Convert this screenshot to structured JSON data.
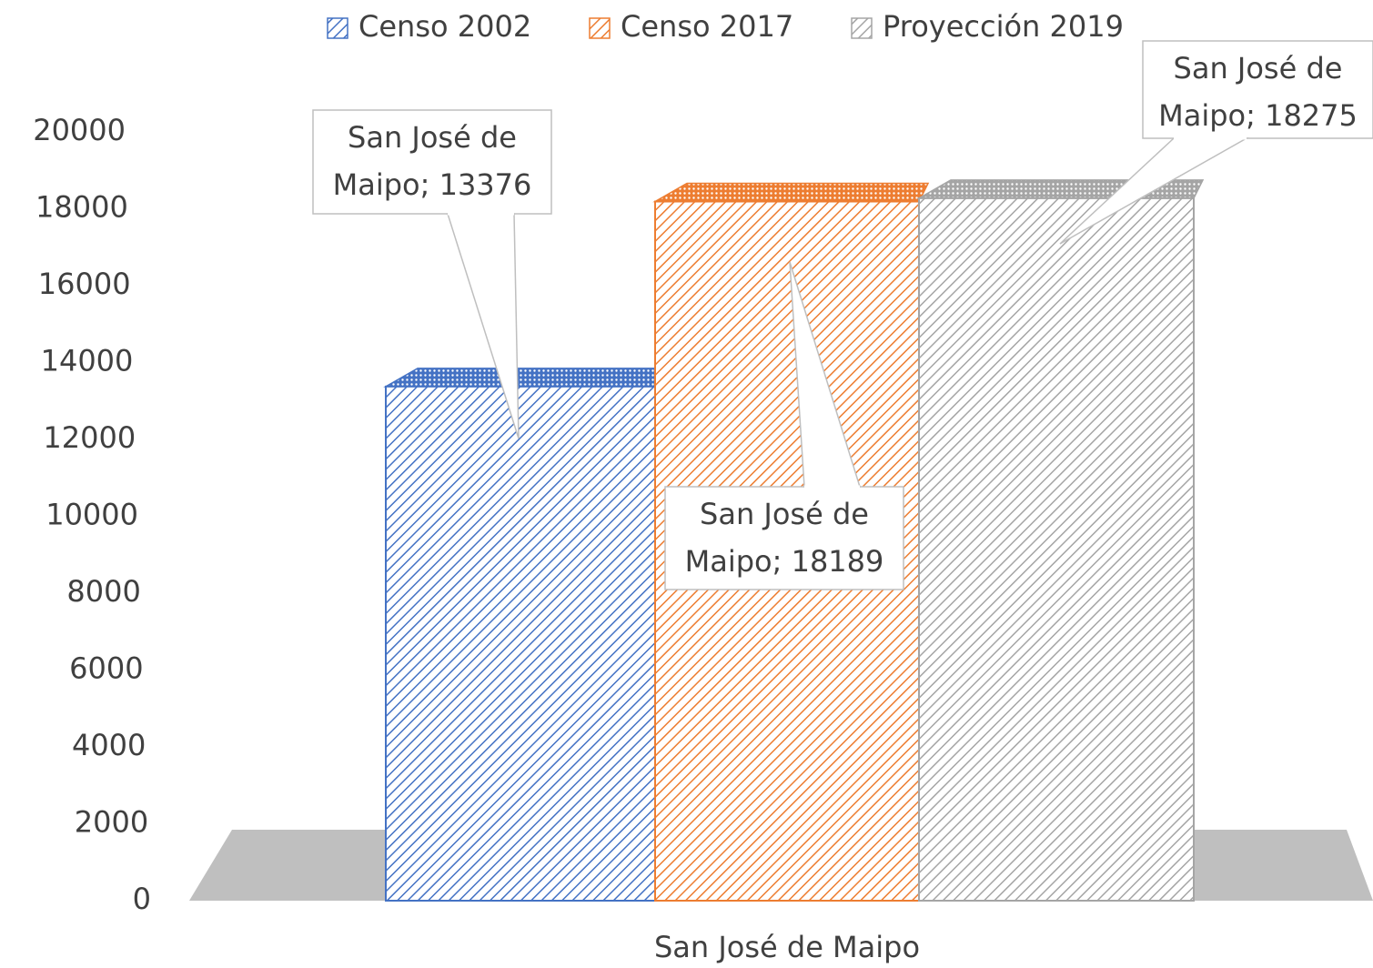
{
  "chart_data": {
    "type": "bar3d",
    "categories": [
      "San José de Maipo"
    ],
    "series": [
      {
        "name": "Censo 2002",
        "color": "#4472c4",
        "values": [
          13376
        ],
        "value_labels": [
          "San José de Maipo; 13376"
        ]
      },
      {
        "name": "Censo 2017",
        "color": "#ed7d31",
        "values": [
          18189
        ],
        "value_labels": [
          "San José de Maipo; 18189"
        ]
      },
      {
        "name": "Proyección 2019",
        "color": "#a5a5a5",
        "values": [
          18275
        ],
        "value_labels": [
          "San José de Maipo; 18275"
        ]
      }
    ],
    "ylim": [
      0,
      20000
    ],
    "yticks": [
      0,
      2000,
      4000,
      6000,
      8000,
      10000,
      12000,
      14000,
      16000,
      18000,
      20000
    ],
    "legend": "top"
  }
}
